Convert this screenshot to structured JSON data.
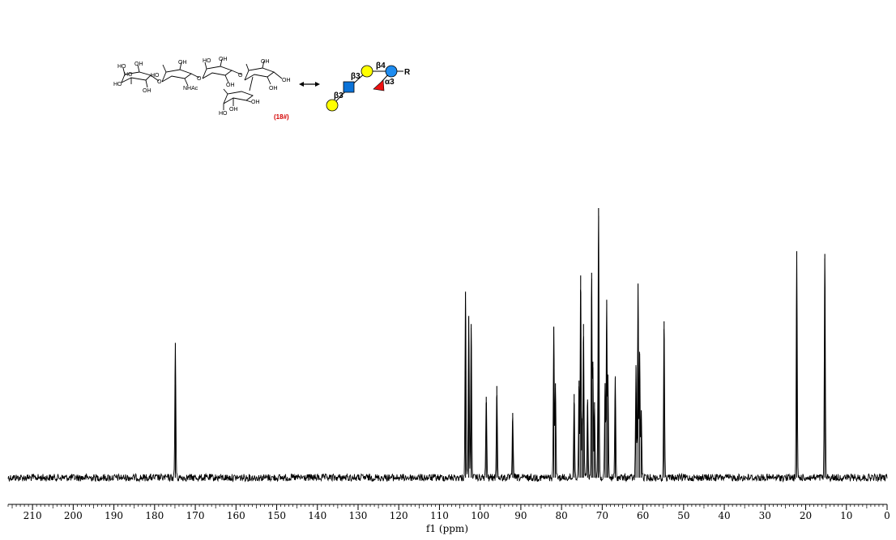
{
  "structure": {
    "compound_id": "(18#)",
    "group_labels": [
      "HO",
      "OH",
      "NHAc",
      "O"
    ],
    "symbol_linkages": [
      "β3",
      "β3",
      "β4",
      "α3"
    ],
    "aglycone": "R",
    "colors": {
      "galactose": "#ffff00",
      "glcnac": "#0a72d8",
      "glucose": "#1e8cf0",
      "fucose": "#ee1111"
    }
  },
  "chart_data": {
    "type": "line",
    "title": "",
    "xlabel": "f1 (ppm)",
    "ylabel": "",
    "xlim": [
      216,
      0
    ],
    "x_reversed": true,
    "ticks": [
      210,
      200,
      190,
      180,
      170,
      160,
      150,
      140,
      130,
      120,
      110,
      100,
      90,
      80,
      70,
      60,
      50,
      40,
      30,
      20,
      10,
      0
    ],
    "ylim": [
      0,
      1
    ],
    "grid": false,
    "series": [
      {
        "peaks": [
          {
            "ppm": 174.9,
            "intensity": 0.5
          },
          {
            "ppm": 103.6,
            "intensity": 0.69
          },
          {
            "ppm": 102.8,
            "intensity": 0.6
          },
          {
            "ppm": 102.2,
            "intensity": 0.57
          },
          {
            "ppm": 98.5,
            "intensity": 0.3
          },
          {
            "ppm": 95.9,
            "intensity": 0.34
          },
          {
            "ppm": 92.0,
            "intensity": 0.24
          },
          {
            "ppm": 81.9,
            "intensity": 0.56
          },
          {
            "ppm": 81.5,
            "intensity": 0.35
          },
          {
            "ppm": 76.9,
            "intensity": 0.31
          },
          {
            "ppm": 75.7,
            "intensity": 0.36
          },
          {
            "ppm": 75.3,
            "intensity": 0.75
          },
          {
            "ppm": 74.9,
            "intensity": 0.22
          },
          {
            "ppm": 74.6,
            "intensity": 0.57
          },
          {
            "ppm": 73.6,
            "intensity": 0.29
          },
          {
            "ppm": 72.6,
            "intensity": 0.76
          },
          {
            "ppm": 72.3,
            "intensity": 0.43
          },
          {
            "ppm": 71.9,
            "intensity": 0.28
          },
          {
            "ppm": 71.0,
            "intensity": 0.35
          },
          {
            "ppm": 70.9,
            "intensity": 1.0
          },
          {
            "ppm": 69.3,
            "intensity": 0.35
          },
          {
            "ppm": 68.9,
            "intensity": 0.66
          },
          {
            "ppm": 68.6,
            "intensity": 0.38
          },
          {
            "ppm": 66.8,
            "intensity": 0.37
          },
          {
            "ppm": 61.7,
            "intensity": 0.41
          },
          {
            "ppm": 61.2,
            "intensity": 0.72
          },
          {
            "ppm": 60.8,
            "intensity": 0.46
          },
          {
            "ppm": 60.4,
            "intensity": 0.25
          },
          {
            "ppm": 54.8,
            "intensity": 0.58
          },
          {
            "ppm": 22.2,
            "intensity": 0.84
          },
          {
            "ppm": 15.3,
            "intensity": 0.83
          }
        ]
      }
    ]
  }
}
